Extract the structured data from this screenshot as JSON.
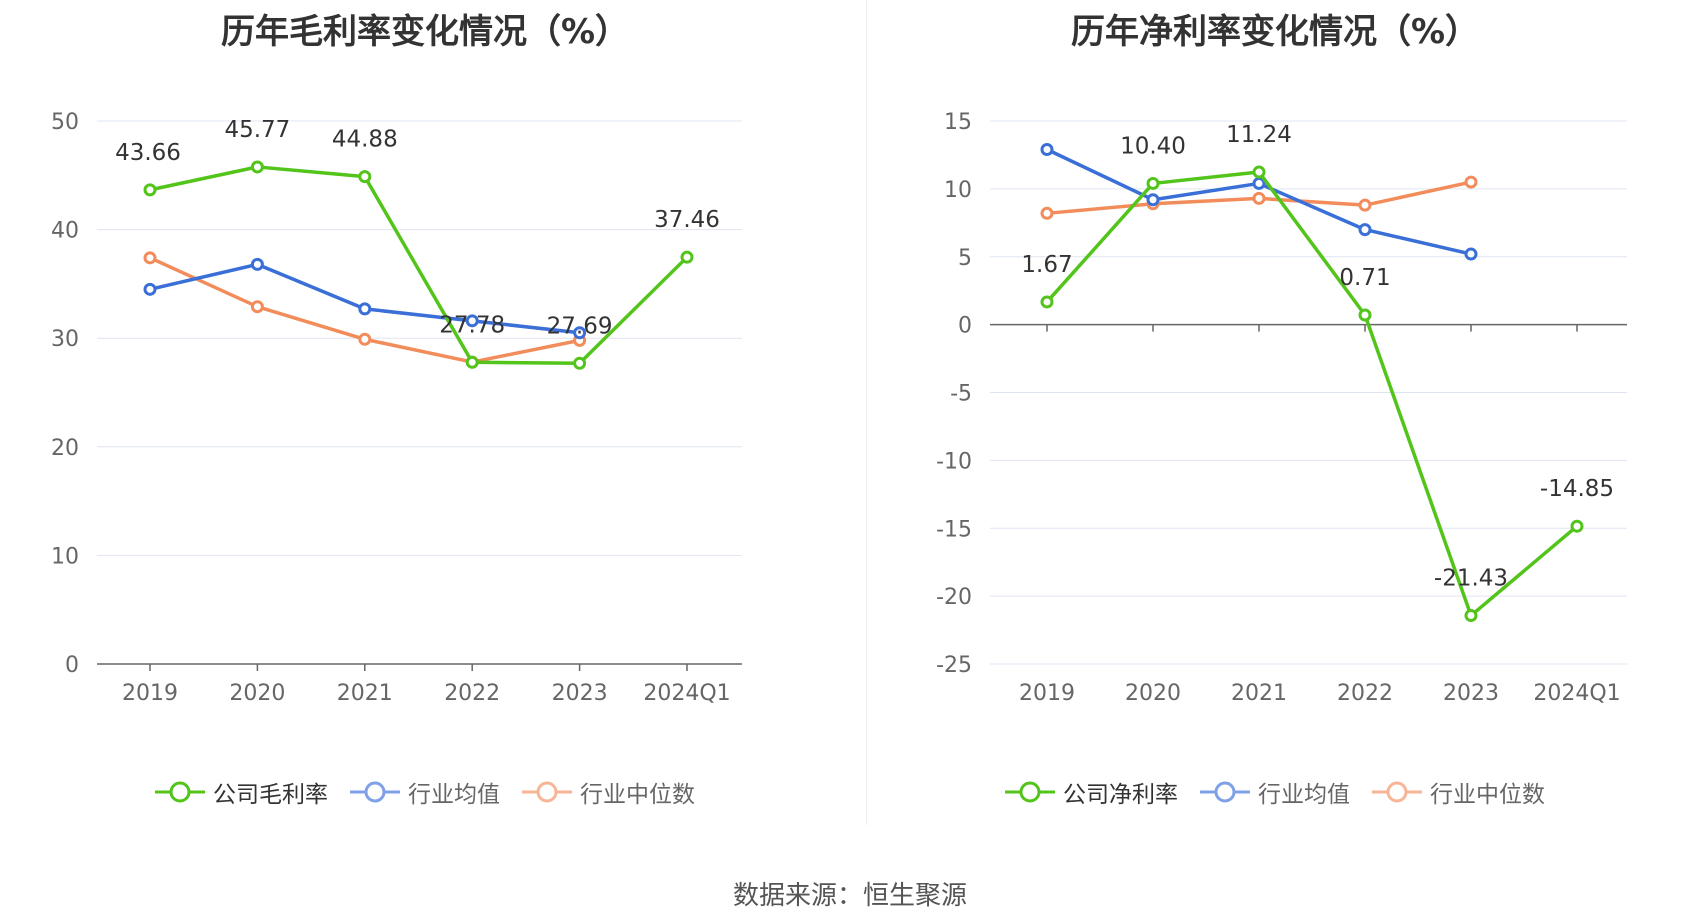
{
  "chart_data": [
    {
      "type": "line",
      "title": "历年毛利率变化情况（%）",
      "categories": [
        "2019",
        "2020",
        "2021",
        "2022",
        "2023",
        "2024Q1"
      ],
      "ylim": [
        0,
        50
      ],
      "yticks": [
        0,
        10,
        20,
        30,
        40,
        50
      ],
      "grid": true,
      "legend_position": "bottom",
      "series": [
        {
          "name": "公司毛利率",
          "color": "#52c41a",
          "values": [
            43.66,
            45.77,
            44.88,
            27.78,
            27.69,
            37.46
          ],
          "labeled": true
        },
        {
          "name": "行业均值",
          "color": "#3a6fd8",
          "values": [
            34.5,
            36.8,
            32.7,
            31.6,
            30.5,
            null
          ],
          "labeled": false
        },
        {
          "name": "行业中位数",
          "color": "#f28c5a",
          "values": [
            37.4,
            32.9,
            29.9,
            27.8,
            29.8,
            null
          ],
          "labeled": false
        }
      ]
    },
    {
      "type": "line",
      "title": "历年净利率变化情况（%）",
      "categories": [
        "2019",
        "2020",
        "2021",
        "2022",
        "2023",
        "2024Q1"
      ],
      "ylim": [
        -25,
        15
      ],
      "yticks": [
        -25,
        -20,
        -15,
        -10,
        -5,
        0,
        5,
        10,
        15
      ],
      "grid": true,
      "legend_position": "bottom",
      "series": [
        {
          "name": "公司净利率",
          "color": "#52c41a",
          "values": [
            1.67,
            10.4,
            11.24,
            0.71,
            -21.43,
            -14.85
          ],
          "labeled": true
        },
        {
          "name": "行业均值",
          "color": "#3a6fd8",
          "values": [
            12.9,
            9.2,
            10.4,
            7.0,
            5.2,
            null
          ],
          "labeled": false
        },
        {
          "name": "行业中位数",
          "color": "#f28c5a",
          "values": [
            8.2,
            8.9,
            9.3,
            8.8,
            10.5,
            null
          ],
          "labeled": false
        }
      ]
    }
  ],
  "left_chart": {
    "title": "历年毛利率变化情况（%）",
    "legend": [
      "公司毛利率",
      "行业均值",
      "行业中位数"
    ]
  },
  "right_chart": {
    "title": "历年净利率变化情况（%）",
    "legend": [
      "公司净利率",
      "行业均值",
      "行业中位数"
    ]
  },
  "source_text": "数据来源：恒生聚源"
}
